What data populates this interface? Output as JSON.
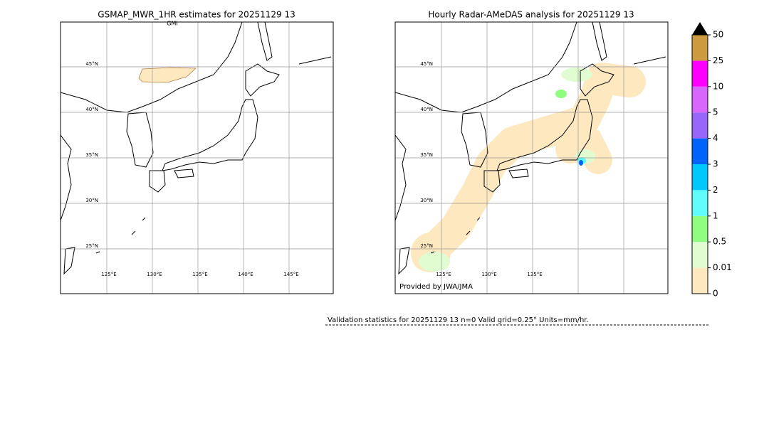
{
  "panels": [
    {
      "title": "GSMAP_MWR_1HR estimates for 20251129 13",
      "sensor": "GMI",
      "lat_labels": [
        "45°N",
        "40°N",
        "35°N",
        "30°N",
        "25°N"
      ],
      "lon_labels": [
        "125°E",
        "130°E",
        "135°E",
        "140°E",
        "145°E"
      ]
    },
    {
      "title": "Hourly Radar-AMeDAS analysis for 20251129 13",
      "credit": "Provided by JWA/JMA",
      "lat_labels": [
        "45°N",
        "40°N",
        "35°N",
        "30°N",
        "25°N"
      ],
      "lon_labels": [
        "125°E",
        "130°E",
        "135°E"
      ]
    }
  ],
  "colorbar": {
    "ticks": [
      0,
      0.01,
      0.5,
      1,
      2,
      3,
      4,
      5,
      10,
      25,
      50
    ],
    "colors": [
      "#fee8c0",
      "#e0fcd0",
      "#90fc80",
      "#60fcfc",
      "#00c8fc",
      "#0064fc",
      "#9966fc",
      "#d966fc",
      "#fc00fc",
      "#cc9a3f"
    ],
    "extend_color": "#000000"
  },
  "validation": "Validation statistics for 20251129 13  n=0 Valid  grid=0.25° Units=mm/hr."
}
